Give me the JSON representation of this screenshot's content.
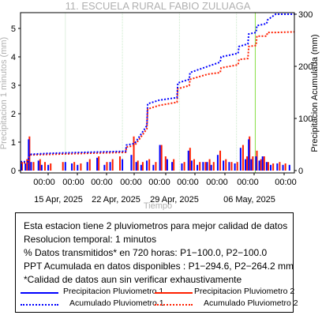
{
  "chart_data": {
    "type": "bar",
    "title": "11. ESCUELA RURAL FABIO ZULUAGA",
    "xlabel": "Tiempo",
    "ylabel_left": "Precipitacion 1 minutos (mm)",
    "ylabel_right": "Precipitacion Acumulada (mm)",
    "ylim_left": [
      0,
      5
    ],
    "ylim_right": [
      0,
      300
    ],
    "yticks_left": [
      "0",
      "1",
      "2",
      "3",
      "4",
      "5"
    ],
    "yticks_right": [
      "0",
      "100",
      "200",
      "300"
    ],
    "x_time_labels": [
      "00:00",
      "00:00",
      "00:00",
      "00:00",
      "00:00",
      "00:00",
      "00:00",
      "00:00",
      "00:00",
      "00:00",
      "00:00"
    ],
    "x_date_labels": [
      "15 Apr, 2025",
      "22 Apr, 2025",
      "29 Apr, 2025",
      "06 May, 2025"
    ],
    "grid": true,
    "colors": {
      "pluvio1": "#0000ff",
      "pluvio2": "#ff2000",
      "grid_line": "#c8e8c8",
      "marker_line": "#88dd44",
      "title": "#b0b0b0",
      "xlabel": "#b0b0b0",
      "ylabel_left": "#b0b0b0"
    },
    "marker_day": 28.8,
    "series": [
      {
        "name": "Precipitacion Pluviometro 1",
        "kind": "bars",
        "color": "#0000ff",
        "x": [
          0.1,
          0.6,
          1.0,
          1.3,
          2.2,
          2.6,
          3.4,
          5.5,
          6.3,
          7.0,
          8.2,
          9.4,
          10.3,
          11.0,
          12.5,
          13.6,
          14.2,
          14.8,
          15.5,
          16.3,
          17.1,
          18.0,
          18.6,
          19.8,
          20.6,
          21.0,
          21.7,
          22.4,
          22.9,
          23.4,
          24.2,
          24.9,
          25.6,
          26.3,
          27.0,
          27.6,
          28.0,
          28.3,
          28.9,
          29.3,
          29.7,
          30.2,
          30.7,
          31.5,
          32.2,
          33.0
        ],
        "values": [
          0.3,
          0.25,
          1.1,
          0.3,
          0.35,
          0.2,
          0.2,
          0.3,
          0.25,
          0.2,
          0.3,
          0.45,
          0.2,
          0.3,
          0.4,
          0.55,
          0.3,
          0.2,
          0.35,
          0.2,
          0.9,
          0.4,
          0.3,
          0.25,
          0.7,
          0.35,
          0.2,
          0.3,
          0.3,
          0.2,
          0.55,
          0.35,
          0.3,
          0.25,
          0.8,
          0.4,
          1.1,
          0.4,
          0.5,
          0.35,
          0.5,
          0.3,
          0.2,
          0.25,
          0.2,
          0.2
        ]
      },
      {
        "name": "Precipitacion Pluviometro 2",
        "kind": "bars",
        "color": "#ff2000",
        "x": [
          0.2,
          0.8,
          1.1,
          1.6,
          2.4,
          3.0,
          3.7,
          5.2,
          6.6,
          7.4,
          8.5,
          9.6,
          10.6,
          11.3,
          12.2,
          13.9,
          14.4,
          15.0,
          15.8,
          16.6,
          17.3,
          17.8,
          18.8,
          20.1,
          20.8,
          21.3,
          22.0,
          22.7,
          23.2,
          23.7,
          24.5,
          25.2,
          25.9,
          26.6,
          27.3,
          27.8,
          28.1,
          28.5,
          29.0,
          29.5,
          29.9,
          30.4,
          31.0,
          31.8,
          32.5
        ],
        "values": [
          0.3,
          0.4,
          1.2,
          0.3,
          0.4,
          0.3,
          0.25,
          0.3,
          0.3,
          0.25,
          0.4,
          0.5,
          0.3,
          0.4,
          0.5,
          1.2,
          0.35,
          0.3,
          0.4,
          0.3,
          0.9,
          0.5,
          0.4,
          0.3,
          0.8,
          0.4,
          0.3,
          0.3,
          0.4,
          0.3,
          0.7,
          0.4,
          0.3,
          0.3,
          0.9,
          0.5,
          1.2,
          0.5,
          0.7,
          0.4,
          0.5,
          0.3,
          0.25,
          0.3,
          0.25
        ]
      },
      {
        "name": "Acumulado Pluviometro 1",
        "kind": "cumulative",
        "color": "#0000ff",
        "x": [
          0,
          0.9,
          1.1,
          3.5,
          8,
          12.9,
          13.0,
          14.0,
          15.5,
          15.6,
          17,
          19.2,
          19.3,
          20.7,
          20.8,
          23,
          24.5,
          24.6,
          26.7,
          26.8,
          27.9,
          28.0,
          28.9,
          29.0,
          30.2,
          30.3,
          31.3,
          33.6
        ],
        "values": [
          17,
          17,
          31,
          33,
          35,
          37,
          49,
          52,
          86,
          128,
          135,
          140,
          168,
          175,
          188,
          200,
          208,
          218,
          225,
          238,
          243,
          262,
          265,
          278,
          282,
          289,
          300,
          300
        ]
      },
      {
        "name": "Acumulado Pluviometro 2",
        "kind": "cumulative",
        "color": "#ff2000",
        "x": [
          0,
          0.9,
          1.1,
          3.5,
          8,
          12.9,
          13.0,
          14.0,
          15.5,
          15.6,
          17,
          19.2,
          19.3,
          20.7,
          20.8,
          23,
          24.5,
          24.6,
          26.7,
          26.8,
          27.9,
          28.0,
          28.9,
          29.0,
          30.2,
          30.3,
          31.3,
          33.6
        ],
        "values": [
          15,
          15,
          30,
          31,
          33,
          35,
          45,
          48,
          80,
          118,
          125,
          131,
          157,
          163,
          175,
          185,
          188,
          197,
          203,
          213,
          215,
          238,
          240,
          258,
          258,
          265,
          265,
          266
        ]
      }
    ]
  },
  "info": {
    "lines": [
      "Esta estacion tiene 2 pluviometros para mejor calidad de datos",
      "Resolucion temporal: 1 minutos",
      "% Datos transmitidos* en 720 horas: P1−100.0, P2−100.0",
      "PPT Acumulada en datos disponibles : P1−294.6, P2−264.2 mm",
      "*Calidad de datos aun sin verificar exhaustivamente"
    ],
    "legend": [
      {
        "label": "Precipitacion Pluviometro 1",
        "color": "#0000ff",
        "style": "solid"
      },
      {
        "label": "Precipitacion Pluviometro 2",
        "color": "#ff2000",
        "style": "solid"
      },
      {
        "label": "Acumulado Pluviometro 1",
        "color": "#0000ff",
        "style": "dotted"
      },
      {
        "label": "Acumulado Pluviometro 2",
        "color": "#ff2000",
        "style": "dotted"
      }
    ]
  }
}
